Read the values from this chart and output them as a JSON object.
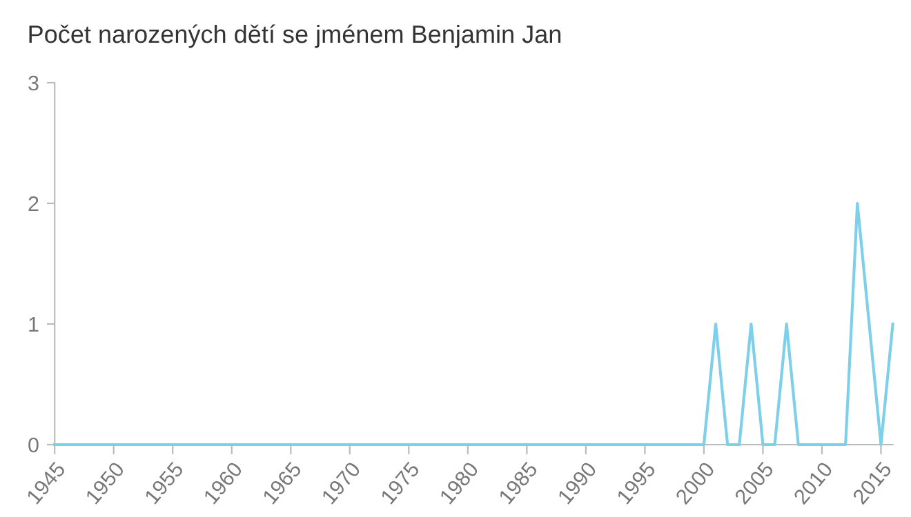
{
  "chart_data": {
    "type": "line",
    "title": "Počet narozených dětí se jménem Benjamin Jan",
    "x": [
      1945,
      1946,
      1947,
      1948,
      1949,
      1950,
      1951,
      1952,
      1953,
      1954,
      1955,
      1956,
      1957,
      1958,
      1959,
      1960,
      1961,
      1962,
      1963,
      1964,
      1965,
      1966,
      1967,
      1968,
      1969,
      1970,
      1971,
      1972,
      1973,
      1974,
      1975,
      1976,
      1977,
      1978,
      1979,
      1980,
      1981,
      1982,
      1983,
      1984,
      1985,
      1986,
      1987,
      1988,
      1989,
      1990,
      1991,
      1992,
      1993,
      1994,
      1995,
      1996,
      1997,
      1998,
      1999,
      2000,
      2001,
      2002,
      2003,
      2004,
      2005,
      2006,
      2007,
      2008,
      2009,
      2010,
      2011,
      2012,
      2013,
      2014,
      2015,
      2016
    ],
    "series": [
      {
        "color": "#7ecfea",
        "values": [
          0,
          0,
          0,
          0,
          0,
          0,
          0,
          0,
          0,
          0,
          0,
          0,
          0,
          0,
          0,
          0,
          0,
          0,
          0,
          0,
          0,
          0,
          0,
          0,
          0,
          0,
          0,
          0,
          0,
          0,
          0,
          0,
          0,
          0,
          0,
          0,
          0,
          0,
          0,
          0,
          0,
          0,
          0,
          0,
          0,
          0,
          0,
          0,
          0,
          0,
          0,
          0,
          0,
          0,
          0,
          0,
          1,
          0,
          0,
          1,
          0,
          0,
          1,
          0,
          0,
          0,
          0,
          0,
          2,
          1,
          0,
          1
        ]
      }
    ],
    "xlim": [
      1945,
      2016
    ],
    "xticks": [
      1945,
      1950,
      1955,
      1960,
      1965,
      1970,
      1975,
      1980,
      1985,
      1990,
      1995,
      2000,
      2005,
      2010,
      2015
    ],
    "ylim": [
      0,
      3
    ],
    "yticks": [
      0,
      1,
      2,
      3
    ],
    "grid": false,
    "legend": false,
    "marker": "none",
    "line_style": "solid"
  }
}
